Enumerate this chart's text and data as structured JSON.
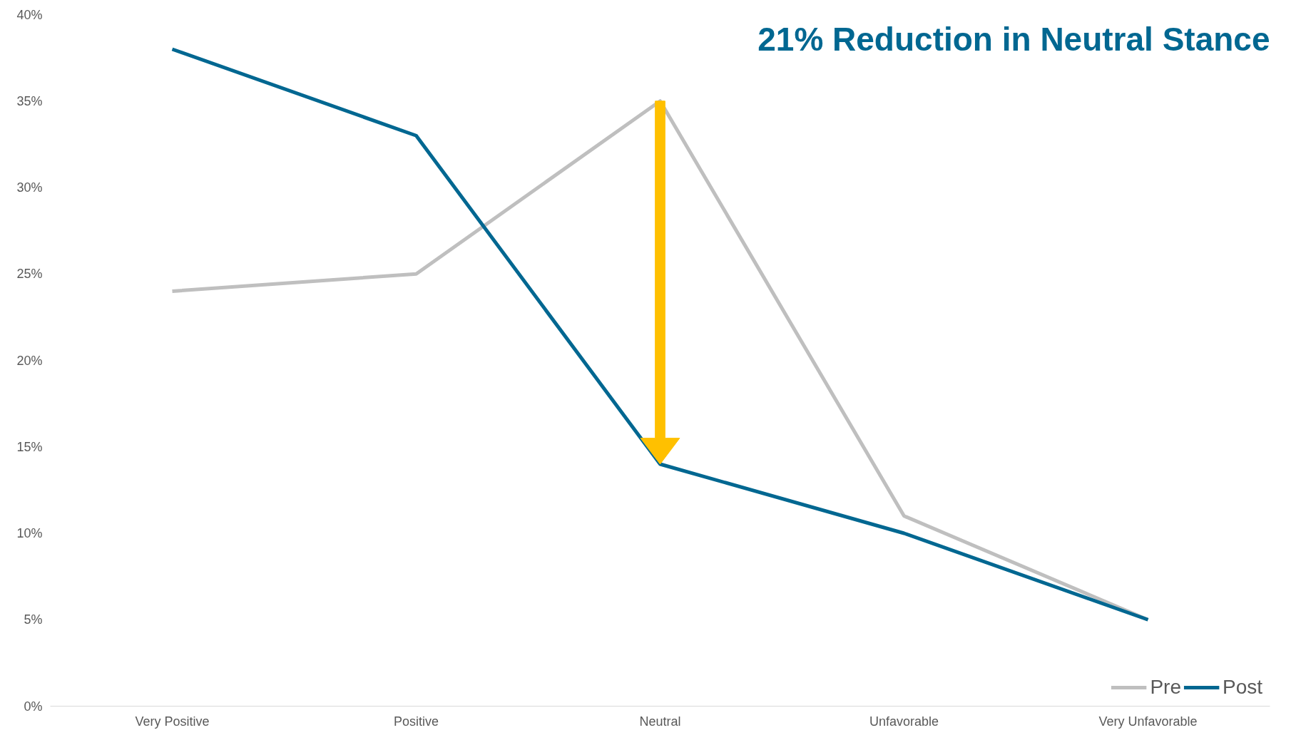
{
  "chart_data": {
    "type": "line",
    "categories": [
      "Very Positive",
      "Positive",
      "Neutral",
      "Unfavorable",
      "Very Unfavorable"
    ],
    "series": [
      {
        "name": "Pre",
        "color": "#bfbfbf",
        "values": [
          24,
          25,
          35,
          11,
          5
        ]
      },
      {
        "name": "Post",
        "color": "#006791",
        "values": [
          38,
          33,
          14,
          10,
          5
        ]
      }
    ],
    "ylim": [
      0,
      40
    ],
    "yticks": [
      {
        "value": 0,
        "label": "0%"
      },
      {
        "value": 5,
        "label": "5%"
      },
      {
        "value": 10,
        "label": "10%"
      },
      {
        "value": 15,
        "label": "15%"
      },
      {
        "value": 20,
        "label": "20%"
      },
      {
        "value": 25,
        "label": "25%"
      },
      {
        "value": 30,
        "label": "30%"
      },
      {
        "value": 35,
        "label": "35%"
      },
      {
        "value": 40,
        "label": "40%"
      }
    ],
    "annotations": [
      "21% Reduction in Neutral Stance"
    ],
    "grid": false,
    "legend": "bottom right",
    "marker": "none",
    "line_style": "solid"
  }
}
